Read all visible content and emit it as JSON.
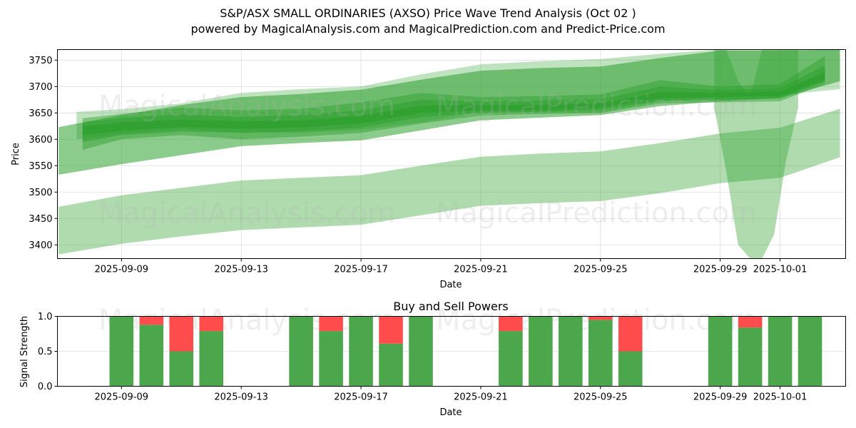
{
  "header": {
    "title": "S&P/ASX SMALL ORDINARIES (AXSO) Price Wave Trend Analysis (Oct 02 )",
    "subtitle": "powered by MagicalAnalysis.com and MagicalPrediction.com and Predict-Price.com"
  },
  "watermarks": [
    "MagicalAnalysis.com",
    "MagicalPrediction.com"
  ],
  "colors": {
    "band": "#2ca02c",
    "buy": "#4ca64c",
    "sell": "#ff4c4c",
    "grid": "#dddddd"
  },
  "chart_data": [
    {
      "type": "area",
      "title": "",
      "xlabel": "Date",
      "ylabel": "Price",
      "ylim": [
        3374,
        3770
      ],
      "xlim": [
        "2025-09-06T20:00",
        "2025-10-03T04:00"
      ],
      "grid": true,
      "yticks": [
        3400,
        3450,
        3500,
        3550,
        3600,
        3650,
        3700,
        3750
      ],
      "xticks": [
        "2025-09-09",
        "2025-09-13",
        "2025-09-17",
        "2025-09-21",
        "2025-09-25",
        "2025-09-29",
        "2025-10-01"
      ],
      "series": [
        {
          "name": "lower-band",
          "opacity": 0.38,
          "x": [
            -2.1,
            0,
            2,
            4,
            6,
            8,
            10,
            12,
            14,
            16,
            18,
            20,
            22,
            24
          ],
          "upper": [
            3472,
            3494,
            3508,
            3522,
            3527,
            3532,
            3550,
            3567,
            3573,
            3577,
            3593,
            3611,
            3622,
            3658
          ],
          "lower": [
            3382,
            3402,
            3416,
            3428,
            3433,
            3438,
            3456,
            3474,
            3479,
            3483,
            3498,
            3517,
            3527,
            3566
          ]
        },
        {
          "name": "wide-band",
          "opacity": 0.55,
          "x": [
            -2.1,
            0,
            2,
            4,
            6,
            8,
            10,
            12,
            14,
            16,
            18,
            20,
            22,
            24
          ],
          "upper": [
            3623,
            3646,
            3665,
            3680,
            3686,
            3694,
            3713,
            3730,
            3735,
            3738,
            3754,
            3768,
            3768,
            3770
          ],
          "lower": [
            3533,
            3553,
            3570,
            3587,
            3593,
            3598,
            3617,
            3636,
            3641,
            3646,
            3663,
            3672,
            3678,
            3710
          ]
        },
        {
          "name": "upper-light-band",
          "opacity": 0.3,
          "x": [
            -1.5,
            0,
            2,
            4,
            6,
            8,
            10,
            12,
            14,
            16,
            18,
            20,
            22,
            24
          ],
          "upper": [
            3652,
            3657,
            3668,
            3688,
            3695,
            3700,
            3723,
            3742,
            3748,
            3752,
            3762,
            3770,
            3770,
            3770
          ],
          "lower": [
            3600,
            3610,
            3620,
            3613,
            3612,
            3618,
            3632,
            3652,
            3651,
            3650,
            3672,
            3680,
            3684,
            3695
          ]
        },
        {
          "name": "core-band-1",
          "opacity": 0.45,
          "x": [
            -1.3,
            0,
            2,
            4,
            6,
            8,
            10,
            12,
            14,
            16,
            18,
            20,
            22,
            23.5
          ],
          "upper": [
            3640,
            3648,
            3660,
            3655,
            3658,
            3670,
            3688,
            3680,
            3682,
            3685,
            3712,
            3700,
            3705,
            3758
          ],
          "lower": [
            3580,
            3600,
            3608,
            3600,
            3605,
            3612,
            3630,
            3645,
            3648,
            3650,
            3668,
            3670,
            3672,
            3705
          ]
        },
        {
          "name": "core-band-2",
          "opacity": 0.5,
          "x": [
            -1.3,
            0,
            2,
            4,
            6,
            8,
            10,
            12,
            14,
            16,
            18,
            20,
            22,
            23.5
          ],
          "upper": [
            3632,
            3640,
            3648,
            3642,
            3646,
            3655,
            3675,
            3672,
            3674,
            3676,
            3700,
            3693,
            3697,
            3740
          ],
          "lower": [
            3595,
            3608,
            3615,
            3612,
            3615,
            3622,
            3642,
            3650,
            3652,
            3656,
            3673,
            3675,
            3678,
            3710
          ]
        },
        {
          "name": "core-line",
          "opacity": 0.7,
          "x": [
            -1.3,
            0,
            2,
            4,
            6,
            8,
            10,
            12,
            14,
            16,
            18,
            20,
            22,
            23.5
          ],
          "upper": [
            3625,
            3632,
            3638,
            3634,
            3636,
            3644,
            3664,
            3665,
            3665,
            3668,
            3690,
            3688,
            3690,
            3728
          ],
          "lower": [
            3608,
            3616,
            3623,
            3620,
            3622,
            3630,
            3650,
            3655,
            3655,
            3660,
            3678,
            3680,
            3682,
            3712
          ]
        },
        {
          "name": "dip-band",
          "opacity": 0.38,
          "x": [
            19.8,
            20.2,
            20.6,
            21.0,
            21.4,
            21.8,
            22.2,
            22.6
          ],
          "upper": [
            3770,
            3770,
            3710,
            3680,
            3770,
            3770,
            3770,
            3770
          ],
          "lower": [
            3660,
            3540,
            3400,
            3374,
            3374,
            3420,
            3560,
            3660
          ]
        }
      ]
    },
    {
      "type": "bar",
      "title": "Buy and Sell Powers",
      "xlabel": "Date",
      "ylabel": "Signal Strength",
      "ylim": [
        0,
        1
      ],
      "yticks": [
        "0.0",
        "0.5",
        "1.0"
      ],
      "xticks": [
        "2025-09-09",
        "2025-09-13",
        "2025-09-17",
        "2025-09-21",
        "2025-09-25",
        "2025-09-29",
        "2025-10-01"
      ],
      "categories": [
        "2025-09-09",
        "2025-09-10",
        "2025-09-11",
        "2025-09-12",
        "2025-09-15",
        "2025-09-16",
        "2025-09-17",
        "2025-09-18",
        "2025-09-19",
        "2025-09-22",
        "2025-09-23",
        "2025-09-24",
        "2025-09-25",
        "2025-09-26",
        "2025-09-29",
        "2025-09-30",
        "2025-10-01",
        "2025-10-02"
      ],
      "series": [
        {
          "name": "Buy",
          "values": [
            1.0,
            0.88,
            0.5,
            0.79,
            1.0,
            0.79,
            1.0,
            0.61,
            1.0,
            0.79,
            1.0,
            1.0,
            0.95,
            0.5,
            1.0,
            0.84,
            1.0,
            1.0
          ]
        },
        {
          "name": "Sell",
          "values": [
            0.0,
            0.12,
            0.5,
            0.21,
            0.0,
            0.21,
            0.0,
            0.39,
            0.0,
            0.21,
            0.0,
            0.0,
            0.05,
            0.5,
            0.0,
            0.16,
            0.0,
            0.0
          ]
        }
      ]
    }
  ]
}
